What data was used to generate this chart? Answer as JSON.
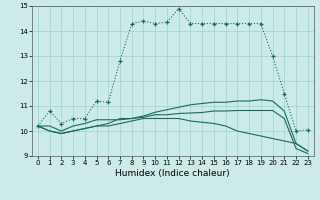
{
  "title": "",
  "xlabel": "Humidex (Indice chaleur)",
  "bg_color": "#cceae8",
  "line_color": "#1a6b5a",
  "grid_color": "#99d5d0",
  "xlim": [
    -0.5,
    23.5
  ],
  "ylim": [
    9,
    15
  ],
  "yticks": [
    9,
    10,
    11,
    12,
    13,
    14,
    15
  ],
  "xticks": [
    0,
    1,
    2,
    3,
    4,
    5,
    6,
    7,
    8,
    9,
    10,
    11,
    12,
    13,
    14,
    15,
    16,
    17,
    18,
    19,
    20,
    21,
    22,
    23
  ],
  "series1_x": [
    0,
    1,
    2,
    3,
    4,
    5,
    6,
    7,
    8,
    9,
    10,
    11,
    12,
    13,
    14,
    15,
    16,
    17,
    18,
    19,
    20,
    21,
    22,
    23
  ],
  "series1_y": [
    10.2,
    10.8,
    10.3,
    10.5,
    10.5,
    11.2,
    11.15,
    12.8,
    14.3,
    14.4,
    14.3,
    14.35,
    14.9,
    14.3,
    14.3,
    14.3,
    14.3,
    14.3,
    14.3,
    14.3,
    13.0,
    11.5,
    10.0,
    10.05
  ],
  "series2_x": [
    0,
    1,
    2,
    3,
    4,
    5,
    6,
    7,
    8,
    9,
    10,
    11,
    12,
    13,
    14,
    15,
    16,
    17,
    18,
    19,
    20,
    21,
    22,
    23
  ],
  "series2_y": [
    10.2,
    10.2,
    10.0,
    10.2,
    10.3,
    10.45,
    10.45,
    10.45,
    10.5,
    10.6,
    10.75,
    10.85,
    10.95,
    11.05,
    11.1,
    11.15,
    11.15,
    11.2,
    11.2,
    11.25,
    11.2,
    10.8,
    9.5,
    9.2
  ],
  "series3_x": [
    0,
    1,
    2,
    3,
    4,
    5,
    6,
    7,
    8,
    9,
    10,
    11,
    12,
    13,
    14,
    15,
    16,
    17,
    18,
    19,
    20,
    21,
    22,
    23
  ],
  "series3_y": [
    10.2,
    10.0,
    9.9,
    10.0,
    10.1,
    10.2,
    10.2,
    10.3,
    10.4,
    10.5,
    10.5,
    10.5,
    10.5,
    10.4,
    10.35,
    10.3,
    10.2,
    10.0,
    9.9,
    9.8,
    9.7,
    9.6,
    9.5,
    9.2
  ],
  "series4_x": [
    0,
    1,
    2,
    3,
    4,
    5,
    6,
    7,
    8,
    9,
    10,
    11,
    12,
    13,
    14,
    15,
    16,
    17,
    18,
    19,
    20,
    21,
    22,
    23
  ],
  "series4_y": [
    10.2,
    10.0,
    9.9,
    10.0,
    10.1,
    10.2,
    10.3,
    10.5,
    10.5,
    10.55,
    10.65,
    10.65,
    10.7,
    10.72,
    10.74,
    10.8,
    10.8,
    10.82,
    10.82,
    10.82,
    10.82,
    10.5,
    9.3,
    9.1
  ]
}
